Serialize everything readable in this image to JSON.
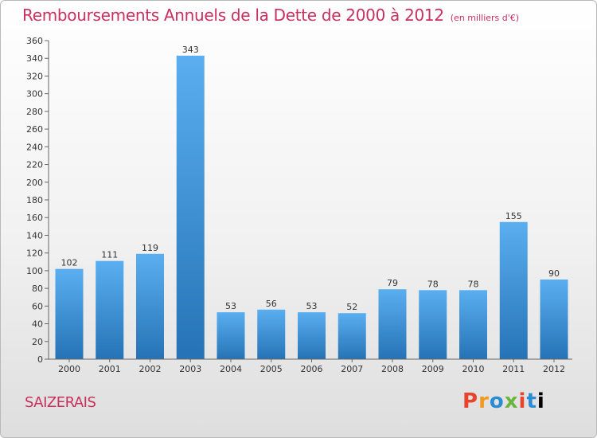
{
  "chart_data": {
    "type": "bar",
    "title": "Remboursements Annuels de la Dette de 2000 à 2012",
    "unit": "(en milliers d'€)",
    "categories": [
      "2000",
      "2001",
      "2002",
      "2003",
      "2004",
      "2005",
      "2006",
      "2007",
      "2008",
      "2009",
      "2010",
      "2011",
      "2012"
    ],
    "values": [
      102,
      111,
      119,
      343,
      53,
      56,
      53,
      52,
      79,
      78,
      78,
      155,
      90
    ],
    "ylim": [
      0,
      360
    ],
    "ytick_step": 20,
    "grid": false,
    "bar_color": "#3a8fd6"
  },
  "commune": "SAIZERAIS",
  "brand_letters": [
    "P",
    "r",
    "o",
    "x",
    "i",
    "t",
    "i"
  ]
}
